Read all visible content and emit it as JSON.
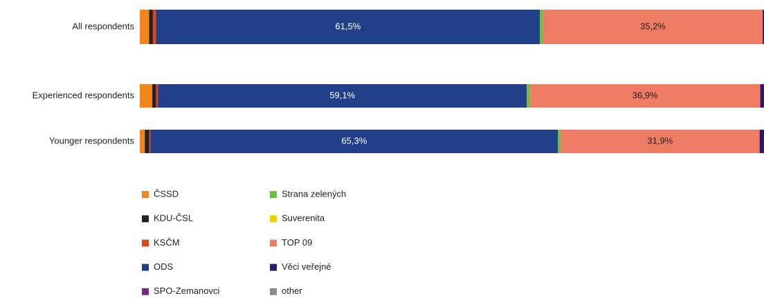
{
  "chart_data": {
    "type": "stacked-bar-horizontal",
    "categories": [
      "All respondents",
      "Experienced respondents",
      "Younger respondents"
    ],
    "xlim": [
      0,
      100
    ],
    "series": [
      {
        "name": "ČSSD",
        "color": "#f0861c",
        "values": [
          1.5,
          2.0,
          0.8
        ]
      },
      {
        "name": "KDU-ČSL",
        "color": "#222222",
        "values": [
          0.6,
          0.6,
          0.7
        ]
      },
      {
        "name": "KSČM",
        "color": "#e0421a",
        "values": [
          0.5,
          0.3,
          0.2
        ]
      },
      {
        "name": "ODS",
        "color": "#223f8a",
        "values": [
          61.5,
          59.1,
          65.3
        ],
        "value_labels": [
          "61,5%",
          "59,1%",
          "65,3%"
        ]
      },
      {
        "name": "SPO-Zemanovci",
        "color": "#7b2a80",
        "values": [
          0,
          0,
          0
        ]
      },
      {
        "name": "Strana zelených",
        "color": "#6cbf3c",
        "values": [
          0.5,
          0.5,
          0.4
        ]
      },
      {
        "name": "Suverenita",
        "color": "#e8d400",
        "values": [
          0,
          0,
          0
        ]
      },
      {
        "name": "TOP 09",
        "color": "#ee7b63",
        "values": [
          35.2,
          36.9,
          31.9
        ],
        "value_labels": [
          "35,2%",
          "36,9%",
          "31,9%"
        ]
      },
      {
        "name": "Věci veřejné",
        "color": "#2e1a66",
        "values": [
          0.2,
          0.6,
          0.7
        ]
      },
      {
        "name": "other",
        "color": "#868c92",
        "values": [
          0,
          0,
          0
        ]
      }
    ]
  }
}
